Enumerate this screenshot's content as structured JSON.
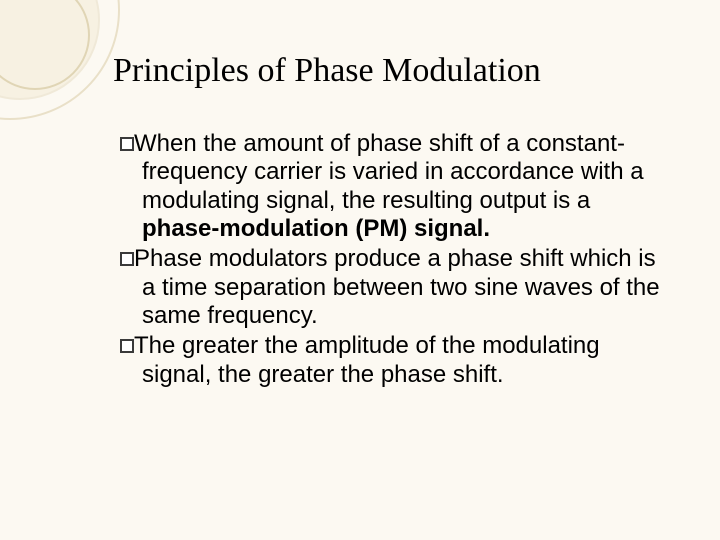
{
  "slide": {
    "background_color": "#fcf9f2",
    "decoration": {
      "circle_colors": [
        "#e9e0c8",
        "#e9e0c8",
        "#e0d5b5"
      ],
      "circle_fill": "#f4edd9"
    },
    "title": {
      "text": "Principles of Phase Modulation",
      "font_family": "Georgia, serif",
      "font_size_pt": 26,
      "color": "#1a1a1a"
    },
    "body": {
      "font_family": "Arial, sans-serif",
      "font_size_pt": 18,
      "color": "#1a1a1a",
      "bullet_style": "hollow-square",
      "items": [
        {
          "runs": [
            {
              "text": "When the amount of phase shift of a constant-frequency carrier is varied in accordance with a modulating signal, the resulting output is a ",
              "bold": false
            },
            {
              "text": "phase-modulation (PM) signal.",
              "bold": true
            }
          ]
        },
        {
          "runs": [
            {
              "text": "Phase modulators produce a phase shift which is a time separation between two sine waves of the same frequency.",
              "bold": false
            }
          ]
        },
        {
          "runs": [
            {
              "text": "The greater the amplitude of the modulating signal, the greater the phase shift.",
              "bold": false
            }
          ]
        }
      ]
    }
  }
}
